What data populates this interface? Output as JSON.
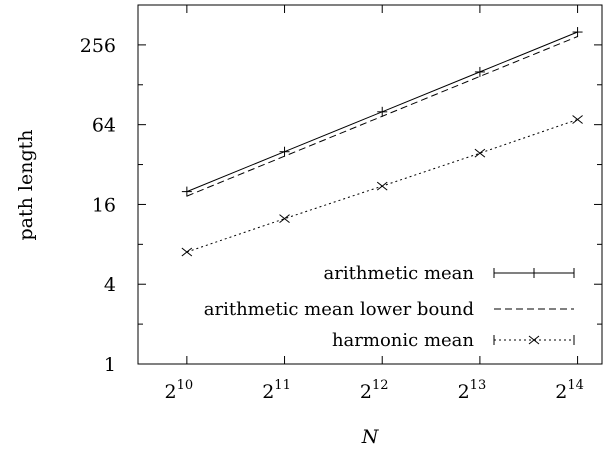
{
  "chart_data": {
    "type": "line",
    "xlabel": "N",
    "ylabel": "path length",
    "x_scale": "log2",
    "y_scale": "log2",
    "x": [
      1024,
      2048,
      4096,
      8192,
      16384
    ],
    "x_tick_labels": [
      {
        "base": "2",
        "exp": "10"
      },
      {
        "base": "2",
        "exp": "11"
      },
      {
        "base": "2",
        "exp": "12"
      },
      {
        "base": "2",
        "exp": "13"
      },
      {
        "base": "2",
        "exp": "14"
      }
    ],
    "y_ticks": [
      1,
      4,
      16,
      64,
      256
    ],
    "y_tick_labels": [
      "1",
      "4",
      "16",
      "64",
      "256"
    ],
    "xlim": [
      724,
      19484
    ],
    "ylim": [
      1,
      512
    ],
    "grid": false,
    "legend_position": "bottom-right",
    "series": [
      {
        "name": "arithmetic mean",
        "values": [
          20,
          40,
          80,
          160,
          320
        ],
        "line": "solid",
        "marker": "plus",
        "color": "#000000"
      },
      {
        "name": "arithmetic mean lower bound",
        "values": [
          18.5,
          37,
          74,
          148,
          296
        ],
        "line": "dashed",
        "marker": "none",
        "color": "#000000"
      },
      {
        "name": "harmonic mean",
        "values": [
          7,
          12.5,
          22,
          39,
          70
        ],
        "line": "dotted",
        "marker": "cross",
        "color": "#000000"
      }
    ]
  }
}
